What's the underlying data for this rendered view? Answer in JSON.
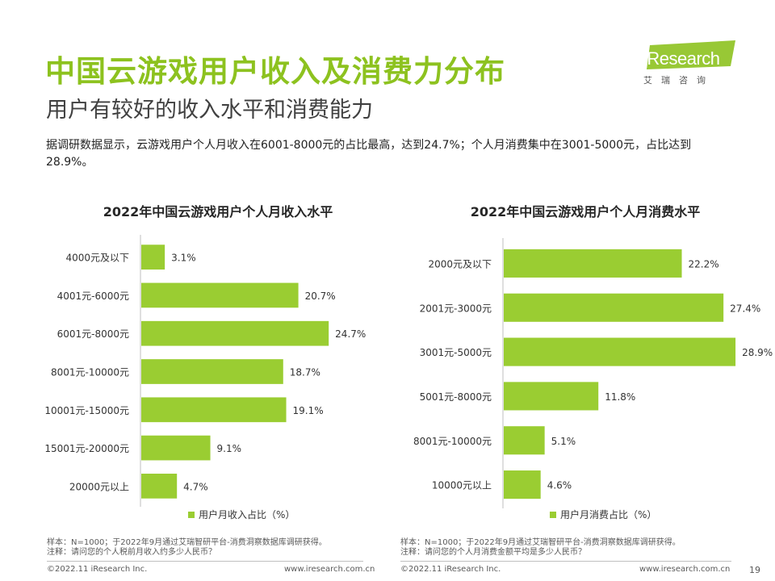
{
  "header": {
    "title": "中国云游戏用户收入及消费力分布",
    "subtitle": "用户有较好的收入水平和消费能力",
    "summary": "据调研数据显示，云游戏用户个人月收入在6001-8000元的占比最高，达到24.7%；个人月消费集中在3001-5000元，占比达到28.9%。"
  },
  "logo": {
    "name": "iResearch",
    "sub": "艾瑞咨询",
    "accent_color": "#8dc21f"
  },
  "colors": {
    "accent": "#8dc21f",
    "bar": "#9acd32",
    "axis": "#bfbfbf"
  },
  "chart_data": [
    {
      "type": "bar",
      "orientation": "horizontal",
      "title": "2022年中国云游戏用户个人月收入水平",
      "categories": [
        "4000元及以下",
        "4001元-6000元",
        "6001元-8000元",
        "8001元-10000元",
        "10001元-15000元",
        "15001元-20000元",
        "20000元以上"
      ],
      "series": [
        {
          "name": "用户月收入占比（%）",
          "values": [
            3.1,
            20.7,
            24.7,
            18.7,
            19.1,
            9.1,
            4.7
          ]
        }
      ],
      "value_labels": [
        "3.1%",
        "20.7%",
        "24.7%",
        "18.7%",
        "19.1%",
        "9.1%",
        "4.7%"
      ],
      "xlim": [
        0,
        30
      ],
      "legend": "bottom"
    },
    {
      "type": "bar",
      "orientation": "horizontal",
      "title": "2022年中国云游戏用户个人月消费水平",
      "categories": [
        "2000元及以下",
        "2001元-3000元",
        "3001元-5000元",
        "5001元-8000元",
        "8001元-10000元",
        "10000元以上"
      ],
      "series": [
        {
          "name": "用户月消费占比（%）",
          "values": [
            22.2,
            27.4,
            28.9,
            11.8,
            5.1,
            4.6
          ]
        }
      ],
      "value_labels": [
        "22.2%",
        "27.4%",
        "28.9%",
        "11.8%",
        "5.1%",
        "4.6%"
      ],
      "xlim": [
        0,
        30
      ],
      "legend": "bottom"
    }
  ],
  "notes": {
    "left": [
      "样本：N=1000；于2022年9月通过艾瑞智研平台-消费洞察数据库调研获得。",
      "注释：请问您的个人税前月收入约多少人民币？"
    ],
    "right": [
      "样本：N=1000；于2022年9月通过艾瑞智研平台-消费洞察数据库调研获得。",
      "注释：请问您的个人月消费金额平均是多少人民币？"
    ]
  },
  "footer": {
    "copyright_left": "©2022.11 iResearch Inc.",
    "url_left": "www.iresearch.com.cn",
    "copyright_right": "©2022.11 iResearch Inc.",
    "url_right": "www.iresearch.com.cn",
    "page_number": "19"
  }
}
